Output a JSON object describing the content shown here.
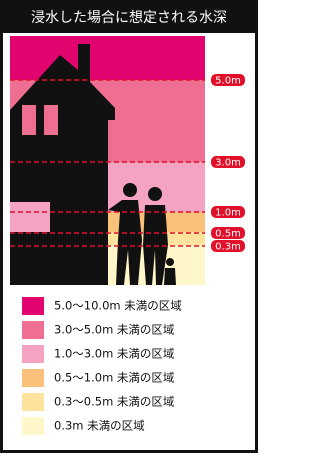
{
  "title": "浸水した場合に想定される水深",
  "depth_markers": [
    "5.0m",
    "3.0m",
    "1.0m",
    "0.5m",
    "0.3m"
  ],
  "legend": [
    {
      "label": "5.0～10.0m 未満の区域",
      "color": "#e2056f"
    },
    {
      "label": "3.0～5.0m 未満の区域",
      "color": "#ee6f91"
    },
    {
      "label": "1.0～3.0m 未満の区域",
      "color": "#f4a3c2"
    },
    {
      "label": "0.5～1.0m 未満の区域",
      "color": "#f9c17a"
    },
    {
      "label": "0.3～0.5m 未満の区域",
      "color": "#fde39b"
    },
    {
      "label": "0.3m 未満の区域",
      "color": "#fff7c9"
    }
  ]
}
